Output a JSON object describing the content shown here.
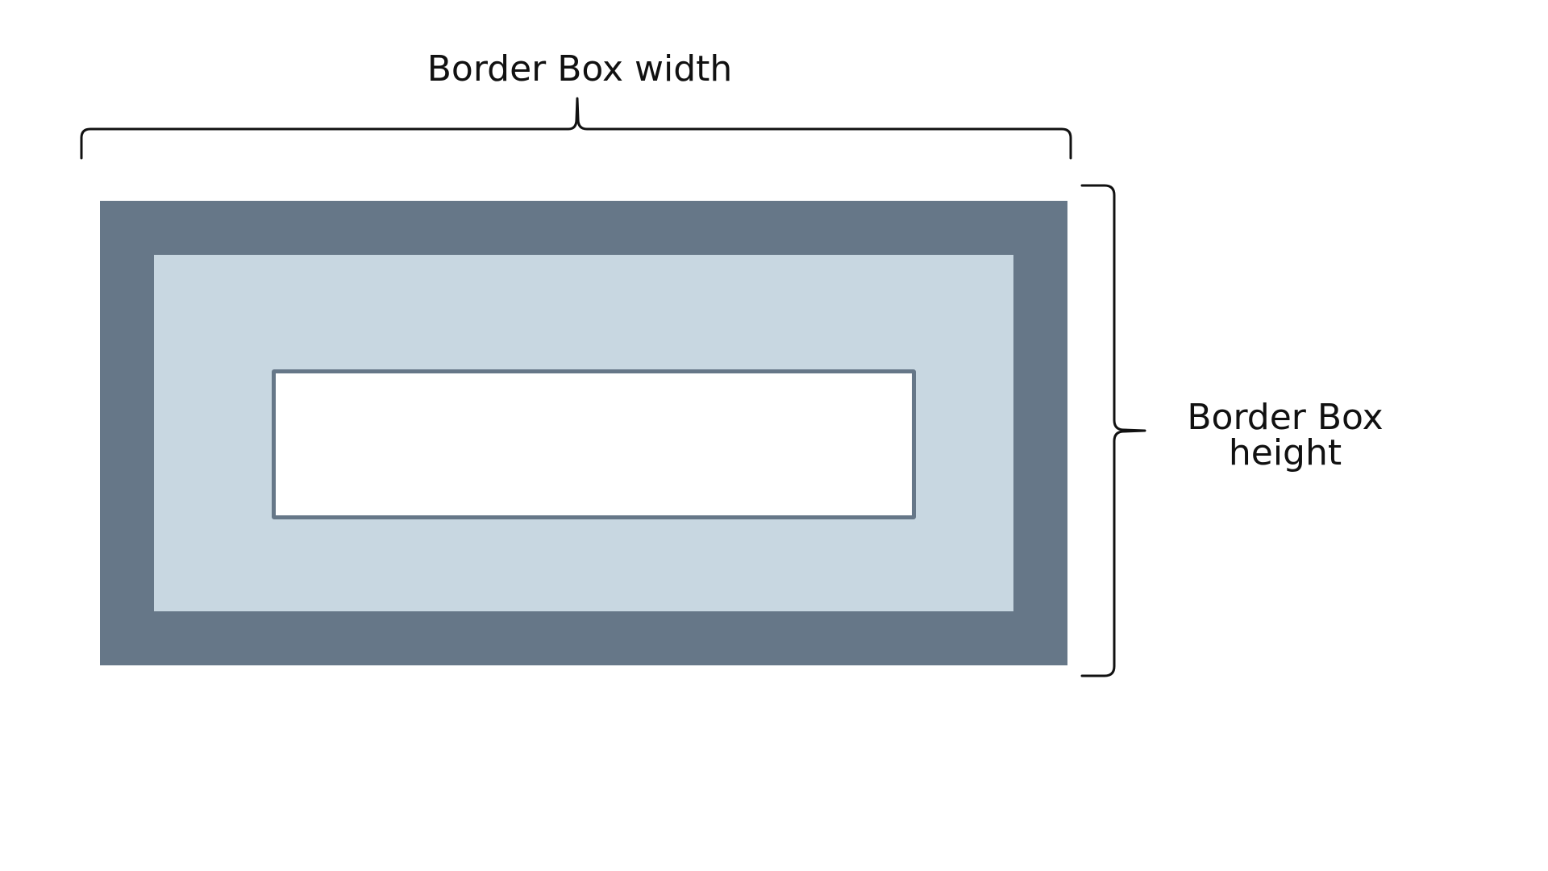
{
  "labels": {
    "width": "Border Box width",
    "height": "Border Box height"
  },
  "colors": {
    "border": "#667788",
    "padding": "#c8d7e1",
    "content": "#ffffff",
    "text": "#111111"
  }
}
